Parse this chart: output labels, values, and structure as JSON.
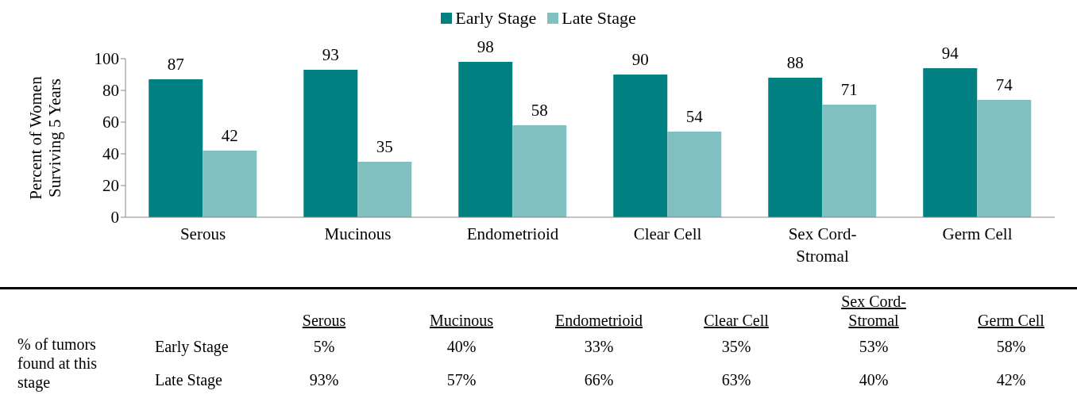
{
  "chart_data": [
    {
      "type": "bar",
      "ylabel": "Percent of Women Surviving 5 Years",
      "categories": [
        "Serous",
        "Mucinous",
        "Endometrioid",
        "Clear Cell",
        "Sex Cord-Stromal",
        "Germ Cell"
      ],
      "series": [
        {
          "name": "Early Stage",
          "color": "#008080",
          "values": [
            87,
            93,
            98,
            90,
            88,
            94
          ]
        },
        {
          "name": "Late Stage",
          "color": "#80c0c0",
          "values": [
            42,
            35,
            58,
            54,
            71,
            74
          ]
        }
      ],
      "ylim": [
        0,
        100
      ],
      "yticks": [
        0,
        20,
        40,
        60,
        80,
        100
      ],
      "data_labels": true,
      "legend": "top",
      "grid": false
    },
    {
      "type": "other",
      "title": "% of tumors found at this stage",
      "categories": [
        "Serous",
        "Mucinous",
        "Endometrioid",
        "Clear Cell",
        "Sex Cord-Stromal",
        "Germ Cell"
      ],
      "y_categories": [
        "Early Stage",
        "Late Stage"
      ],
      "cell_labels": [
        [
          "5%",
          "40%",
          "33%",
          "35%",
          "53%",
          "58%"
        ],
        [
          "93%",
          "57%",
          "66%",
          "63%",
          "40%",
          "42%"
        ]
      ]
    }
  ]
}
